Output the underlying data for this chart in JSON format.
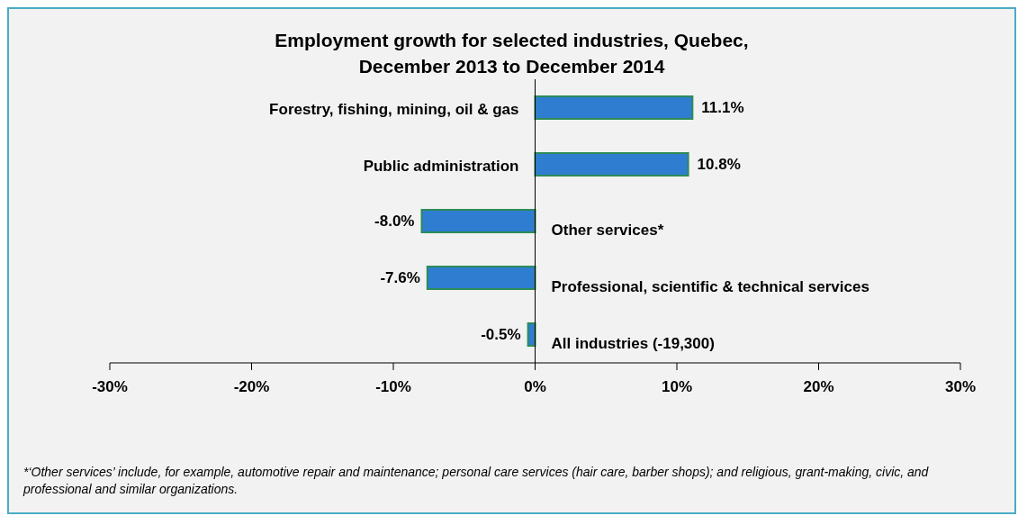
{
  "chart_data": {
    "type": "bar",
    "orientation": "horizontal",
    "title": "Employment growth for selected industries, Quebec, December 2013 to December 2014",
    "categories": [
      "Forestry, fishing, mining, oil & gas",
      "Public administration",
      "Other services*",
      "Professional, scientific & technical services",
      "All industries (-19,300)"
    ],
    "values": [
      11.1,
      10.8,
      -8.0,
      -7.6,
      -0.5
    ],
    "value_labels": [
      "11.1%",
      "10.8%",
      "-8.0%",
      "-7.6%",
      "-0.5%"
    ],
    "color": "#2f7dd0",
    "xlim": [
      -30,
      30
    ],
    "xticks": [
      {
        "value": -30,
        "label": "-30%"
      },
      {
        "value": -20,
        "label": "-20%"
      },
      {
        "value": -10,
        "label": "-10%"
      },
      {
        "value": 0,
        "label": "0%"
      },
      {
        "value": 10,
        "label": "10%"
      },
      {
        "value": 20,
        "label": "20%"
      },
      {
        "value": 30,
        "label": "30%"
      }
    ],
    "grid": false,
    "legend": false,
    "annotations": [
      "*‘Other services’ include, for example, automotive repair and maintenance; personal care services (hair care, barber shops); and religious, grant-making, civic, and professional and similar organizations."
    ]
  }
}
